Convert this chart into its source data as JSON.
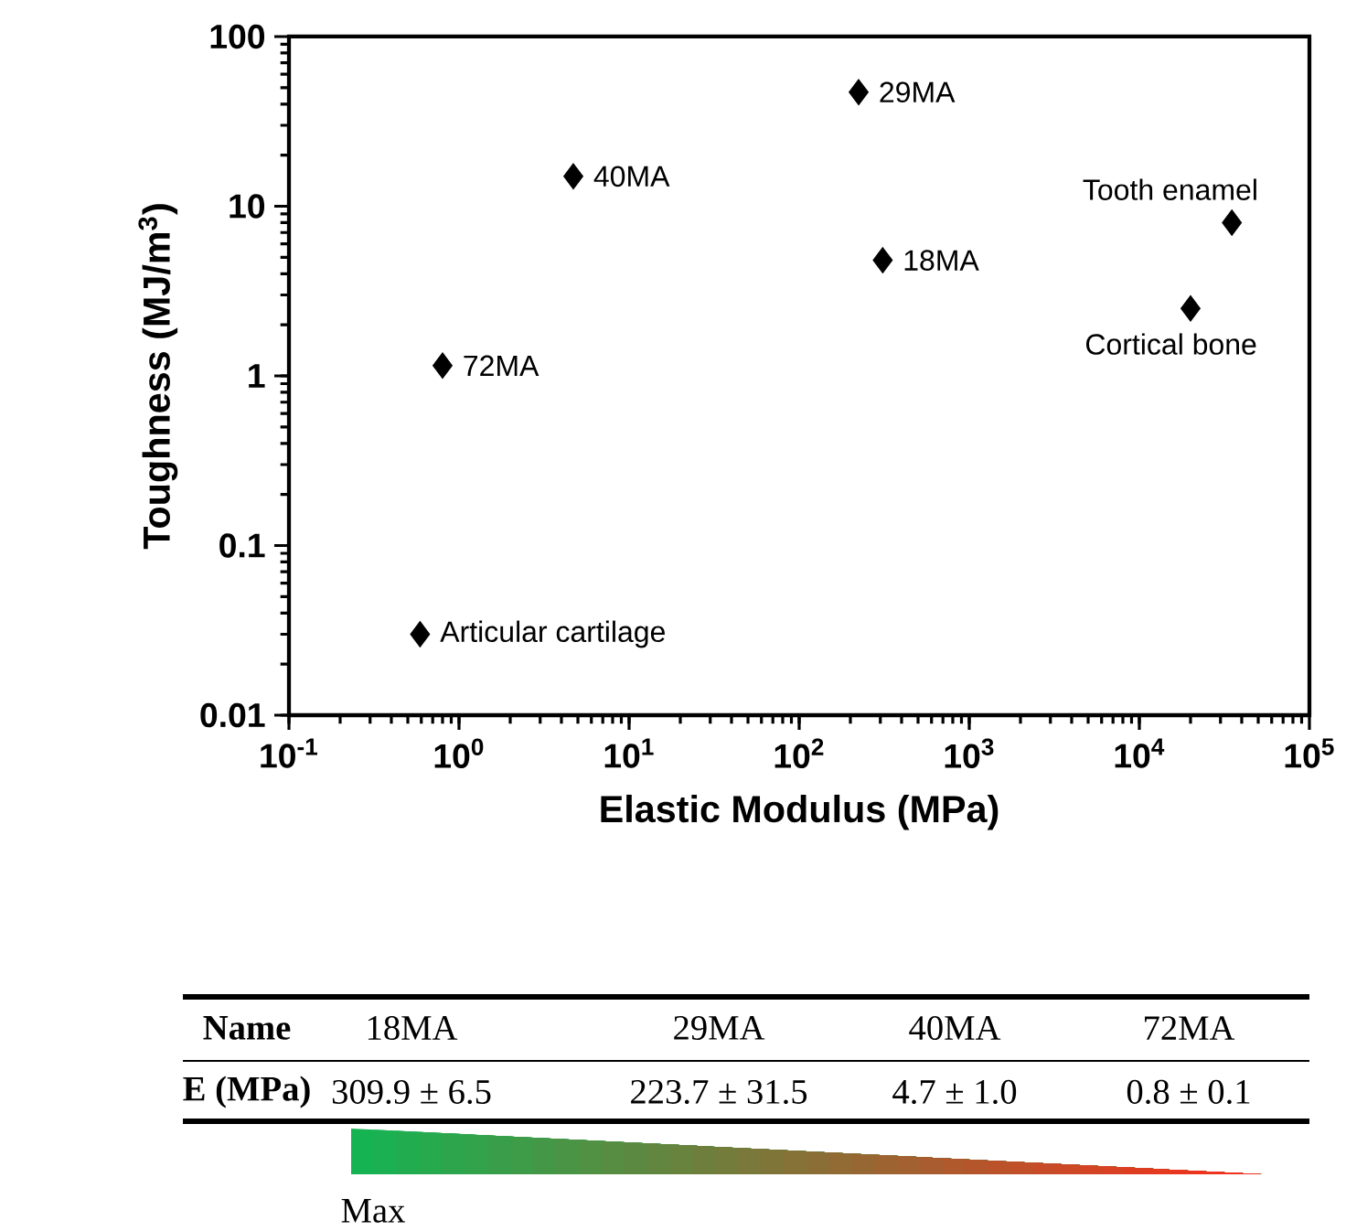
{
  "chart_data": {
    "type": "scatter",
    "xlabel": "Elastic  Modulus  (MPa)",
    "ylabel": "Toughness  (MJ/m$^{3}$)",
    "log": "xy",
    "xlim": [
      0.1,
      100000
    ],
    "ylim": [
      0.01,
      100
    ],
    "xticks": [
      {
        "value": 0.1,
        "label": "10$^{-1}$"
      },
      {
        "value": 1,
        "label": "10$^{0}$"
      },
      {
        "value": 10,
        "label": "10$^{1}$"
      },
      {
        "value": 100,
        "label": "10$^{2}$"
      },
      {
        "value": 1000,
        "label": "10$^{3}$"
      },
      {
        "value": 10000,
        "label": "10$^{4}$"
      },
      {
        "value": 100000,
        "label": "10$^{5}$"
      }
    ],
    "yticks": [
      0.01,
      0.1,
      1,
      10,
      100
    ],
    "marker": "diamond",
    "grid": false,
    "series": [
      {
        "color": "#000000",
        "x": [
          0.59,
          0.8,
          4.7,
          223.7,
          309.9,
          20000,
          35000
        ],
        "values": [
          0.03,
          1.15,
          15,
          47,
          4.8,
          2.5,
          8
        ]
      }
    ],
    "annotations": [
      {
        "text": "Articular cartilage",
        "x": 0.59,
        "y": 0.03
      },
      {
        "text": "72MA",
        "x": 0.8,
        "y": 1.15
      },
      {
        "text": "40MA",
        "x": 4.7,
        "y": 15
      },
      {
        "text": "29MA",
        "x": 223.7,
        "y": 47
      },
      {
        "text": "18MA",
        "x": 309.9,
        "y": 4.8
      },
      {
        "text": "Cortical bone",
        "x": 20000,
        "y": 2.5
      },
      {
        "text": "Tooth enamel",
        "x": 35000,
        "y": 8
      },
      "Name",
      "18MA",
      "29MA",
      "40MA",
      "72MA",
      "E (MPa)",
      "309.9 ± 6.5",
      "223.7 ± 31.5",
      "4.7 ± 1.0",
      "0.8 ± 0.1",
      "Max"
    ]
  }
}
